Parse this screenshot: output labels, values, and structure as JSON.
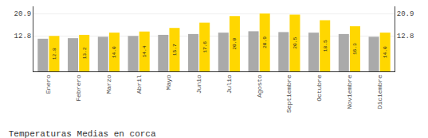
{
  "chart_data": {
    "type": "bar",
    "title": "Temperaturas Medias en corca",
    "categories": [
      "Enero",
      "Febrero",
      "Marzo",
      "Abril",
      "Mayo",
      "Junio",
      "Julio",
      "Agosto",
      "Septiembre",
      "Octubre",
      "Noviembre",
      "Diciembre"
    ],
    "series": [
      {
        "color": "#AAAAAA",
        "values": [
          11.8,
          12.0,
          12.5,
          12.8,
          13.2,
          13.5,
          14.0,
          14.5,
          14.2,
          14.0,
          13.5,
          12.5
        ]
      },
      {
        "color": "#FFD700",
        "values": [
          12.8,
          13.2,
          14.0,
          14.4,
          15.7,
          17.6,
          20.0,
          20.9,
          20.5,
          18.5,
          16.3,
          14.0
        ],
        "value_labels": [
          "12.8",
          "13.2",
          "14.0",
          "14.4",
          "15.7",
          "17.6",
          "20.0",
          "20.9",
          "20.5",
          "18.5",
          "16.3",
          "14.0"
        ],
        "data_labels": true
      }
    ],
    "ylim": [
      0.0,
      23.5
    ],
    "yticks": [
      12.8,
      20.9
    ],
    "y2lim": [
      0.0,
      23.5
    ],
    "y2ticks": [
      12.8,
      20.9
    ],
    "grid": true
  }
}
